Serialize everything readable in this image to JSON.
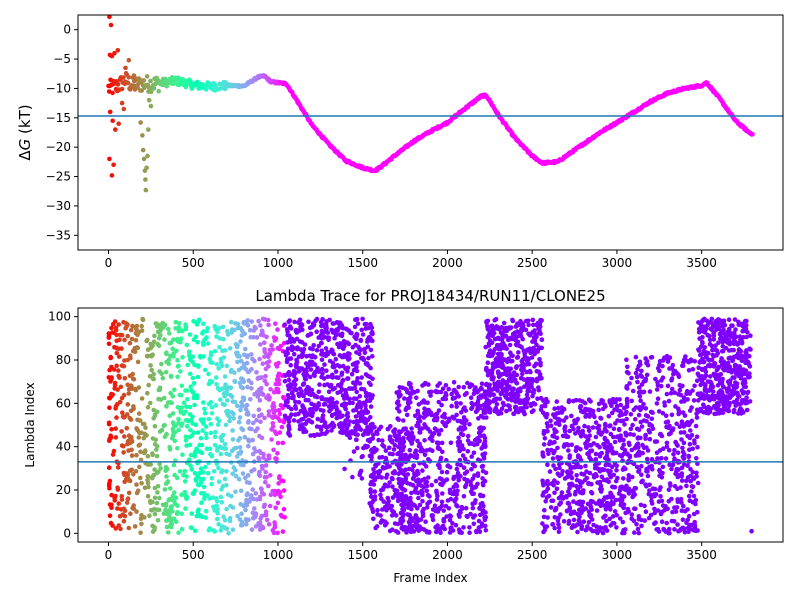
{
  "chart_data": [
    {
      "type": "scatter",
      "title": "",
      "xlabel": "",
      "ylabel": "ΔG (kT)",
      "ylabel_parts": {
        "delta": "Δ",
        "var": "G",
        "unit": " (kT)"
      },
      "xlim": [
        -180,
        3980
      ],
      "ylim": [
        -37.5,
        2.5
      ],
      "xticks": [
        0,
        500,
        1000,
        1500,
        2000,
        2500,
        3000,
        3500
      ],
      "yticks": [
        0,
        -5,
        -10,
        -15,
        -20,
        -25,
        -30,
        -35
      ],
      "reference_line": -14.7,
      "colormap": "rainbow",
      "grid": false,
      "x_max": 3800,
      "keypoints": [
        [
          0,
          -10
        ],
        [
          30,
          -9.8
        ],
        [
          60,
          -9.5
        ],
        [
          100,
          -8.5
        ],
        [
          140,
          -9.5
        ],
        [
          200,
          -9.2
        ],
        [
          280,
          -9.2
        ],
        [
          400,
          -8.7
        ],
        [
          500,
          -9.4
        ],
        [
          600,
          -9.7
        ],
        [
          700,
          -9.5
        ],
        [
          800,
          -9.6
        ],
        [
          880,
          -8.1
        ],
        [
          920,
          -7.9
        ],
        [
          960,
          -8.9
        ],
        [
          1050,
          -9.2
        ],
        [
          1100,
          -11.5
        ],
        [
          1200,
          -16.2
        ],
        [
          1300,
          -19.5
        ],
        [
          1400,
          -22.3
        ],
        [
          1500,
          -23.5
        ],
        [
          1570,
          -24.0
        ],
        [
          1600,
          -23.5
        ],
        [
          1700,
          -21.2
        ],
        [
          1800,
          -19.0
        ],
        [
          1900,
          -17.3
        ],
        [
          2000,
          -15.8
        ],
        [
          2100,
          -13.5
        ],
        [
          2200,
          -11.3
        ],
        [
          2230,
          -11.2
        ],
        [
          2300,
          -14.5
        ],
        [
          2400,
          -18.5
        ],
        [
          2500,
          -21.5
        ],
        [
          2560,
          -22.7
        ],
        [
          2650,
          -22.5
        ],
        [
          2700,
          -21.5
        ],
        [
          2800,
          -19.5
        ],
        [
          2900,
          -17.5
        ],
        [
          3000,
          -15.8
        ],
        [
          3100,
          -14.0
        ],
        [
          3200,
          -12.2
        ],
        [
          3300,
          -10.8
        ],
        [
          3400,
          -10.0
        ],
        [
          3500,
          -9.5
        ],
        [
          3530,
          -9.0
        ],
        [
          3600,
          -11.5
        ],
        [
          3700,
          -15.5
        ],
        [
          3780,
          -17.5
        ],
        [
          3800,
          -17.7
        ]
      ],
      "early_outliers": [
        [
          5,
          2.2
        ],
        [
          15,
          0.8
        ],
        [
          8,
          -4.3
        ],
        [
          20,
          -4.5
        ],
        [
          35,
          -4.0
        ],
        [
          55,
          -3.5
        ],
        [
          10,
          -14.0
        ],
        [
          25,
          -15.5
        ],
        [
          40,
          -17.0
        ],
        [
          60,
          -16.0
        ],
        [
          5,
          -22.0
        ],
        [
          30,
          -23.0
        ],
        [
          20,
          -24.8
        ],
        [
          80,
          -12.5
        ],
        [
          100,
          -6.5
        ],
        [
          120,
          -5.2
        ],
        [
          150,
          -7.8
        ],
        [
          90,
          -13.5
        ],
        [
          190,
          -15.8
        ],
        [
          200,
          -18.0
        ],
        [
          205,
          -20.5
        ],
        [
          210,
          -22.0
        ],
        [
          215,
          -24.0
        ],
        [
          218,
          -25.5
        ],
        [
          220,
          -27.3
        ],
        [
          225,
          -23.5
        ],
        [
          230,
          -21.5
        ],
        [
          235,
          -17.0
        ],
        [
          240,
          -12.0
        ],
        [
          250,
          -13.0
        ]
      ]
    },
    {
      "type": "scatter",
      "title": "Lambda Trace for PROJ18434/RUN11/CLONE25",
      "xlabel": "Frame Index",
      "ylabel": "Lambda Index",
      "xlim": [
        -180,
        3980
      ],
      "ylim": [
        -4,
        104
      ],
      "xticks": [
        0,
        500,
        1000,
        1500,
        2000,
        2500,
        3000,
        3500
      ],
      "yticks": [
        0,
        20,
        40,
        60,
        80,
        100
      ],
      "reference_line": 33,
      "colormap": "rainbow",
      "grid": false,
      "segments": [
        {
          "x": [
            0,
            1040
          ],
          "y": [
            0,
            99
          ],
          "n": 1150,
          "colored": true
        },
        {
          "x": [
            1040,
            1560
          ],
          "y": [
            45,
            99
          ],
          "n": 620,
          "colored": false
        },
        {
          "x": [
            1380,
            1560
          ],
          "y": [
            25,
            60
          ],
          "n": 40,
          "colored": false
        },
        {
          "x": [
            1540,
            1800
          ],
          "y": [
            0,
            50
          ],
          "n": 230,
          "colored": false
        },
        {
          "x": [
            1700,
            2230
          ],
          "y": [
            0,
            70
          ],
          "n": 620,
          "colored": false
        },
        {
          "x": [
            2220,
            2560
          ],
          "y": [
            55,
            99
          ],
          "n": 480,
          "colored": false
        },
        {
          "x": [
            2560,
            3050
          ],
          "y": [
            0,
            62
          ],
          "n": 560,
          "colored": false
        },
        {
          "x": [
            3050,
            3480
          ],
          "y": [
            0,
            82
          ],
          "n": 480,
          "colored": false
        },
        {
          "x": [
            3480,
            3790
          ],
          "y": [
            55,
            99
          ],
          "n": 460,
          "colored": false
        }
      ],
      "extra_points": [
        [
          3795,
          1
        ]
      ]
    }
  ]
}
